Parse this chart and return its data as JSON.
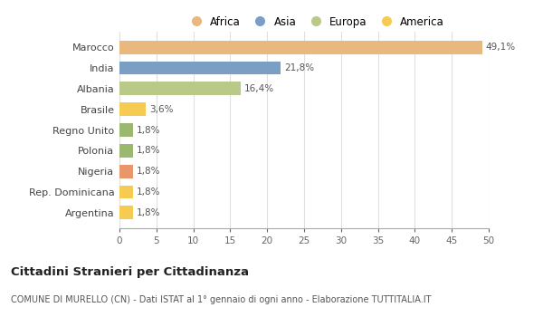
{
  "categories": [
    "Argentina",
    "Rep. Dominicana",
    "Nigeria",
    "Polonia",
    "Regno Unito",
    "Brasile",
    "Albania",
    "India",
    "Marocco"
  ],
  "values": [
    1.8,
    1.8,
    1.8,
    1.8,
    1.8,
    3.6,
    16.4,
    21.8,
    49.1
  ],
  "labels": [
    "1,8%",
    "1,8%",
    "1,8%",
    "1,8%",
    "1,8%",
    "3,6%",
    "16,4%",
    "21,8%",
    "49,1%"
  ],
  "bar_colors": [
    "#f5cb52",
    "#f5cb52",
    "#e8966a",
    "#9ab870",
    "#9ab870",
    "#f5cb52",
    "#b8c988",
    "#7b9fc4",
    "#e8b87e"
  ],
  "legend_labels": [
    "Africa",
    "Asia",
    "Europa",
    "America"
  ],
  "legend_colors": [
    "#e8b87e",
    "#7b9fc4",
    "#b8c988",
    "#f5cb52"
  ],
  "title": "Cittadini Stranieri per Cittadinanza",
  "subtitle": "COMUNE DI MURELLO (CN) - Dati ISTAT al 1° gennaio di ogni anno - Elaborazione TUTTITALIA.IT",
  "xlim": [
    0,
    50
  ],
  "xticks": [
    0,
    5,
    10,
    15,
    20,
    25,
    30,
    35,
    40,
    45,
    50
  ],
  "background_color": "#ffffff",
  "grid_color": "#e0e0e0"
}
